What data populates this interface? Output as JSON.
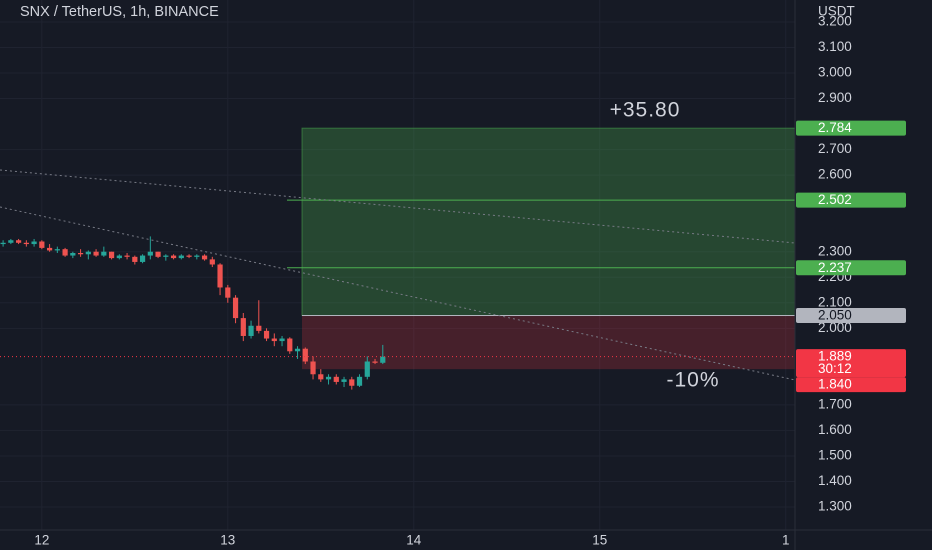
{
  "chart_data": {
    "type": "candlestick",
    "title": "SNX / TetherUS, 1h, BINANCE",
    "currency": "USDT",
    "up_color": "#26a69a",
    "down_color": "#ef5350",
    "x": [
      -5,
      -4,
      -3,
      -2,
      -1,
      0,
      1,
      2,
      3,
      4,
      5,
      6,
      7,
      8,
      9,
      10,
      11,
      12,
      13,
      14,
      15,
      16,
      17,
      18,
      19,
      20,
      21,
      22,
      23,
      24,
      25,
      26,
      27,
      28,
      29,
      30,
      31,
      32,
      33,
      34,
      35,
      36,
      37,
      38,
      39,
      40,
      41,
      42,
      43,
      44
    ],
    "open": [
      2.33,
      2.335,
      2.345,
      2.335,
      2.33,
      2.34,
      2.315,
      2.305,
      2.31,
      2.285,
      2.295,
      2.29,
      2.3,
      2.285,
      2.3,
      2.275,
      2.285,
      2.28,
      2.26,
      2.285,
      2.3,
      2.28,
      2.285,
      2.275,
      2.285,
      2.28,
      2.285,
      2.27,
      2.25,
      2.16,
      2.12,
      2.04,
      1.97,
      2.01,
      1.99,
      1.96,
      1.95,
      1.96,
      1.91,
      1.92,
      1.87,
      1.82,
      1.8,
      1.81,
      1.79,
      1.8,
      1.775,
      1.81,
      1.87,
      1.865
    ],
    "high": [
      2.345,
      2.35,
      2.35,
      2.345,
      2.35,
      2.345,
      2.33,
      2.32,
      2.315,
      2.3,
      2.31,
      2.305,
      2.31,
      2.32,
      2.3,
      2.29,
      2.295,
      2.285,
      2.29,
      2.36,
      2.3,
      2.29,
      2.29,
      2.29,
      2.29,
      2.29,
      2.29,
      2.28,
      2.255,
      2.17,
      2.13,
      2.06,
      2.03,
      2.11,
      2.0,
      1.98,
      1.97,
      1.965,
      1.93,
      1.925,
      1.89,
      1.84,
      1.82,
      1.82,
      1.81,
      1.81,
      1.82,
      1.89,
      1.88,
      1.935
    ],
    "low": [
      2.32,
      2.33,
      2.33,
      2.32,
      2.32,
      2.31,
      2.3,
      2.295,
      2.28,
      2.275,
      2.28,
      2.27,
      2.28,
      2.28,
      2.27,
      2.27,
      2.27,
      2.25,
      2.255,
      2.27,
      2.275,
      2.265,
      2.27,
      2.27,
      2.275,
      2.27,
      2.265,
      2.24,
      2.13,
      2.1,
      2.02,
      1.95,
      1.96,
      1.98,
      1.95,
      1.93,
      1.93,
      1.9,
      1.88,
      1.86,
      1.8,
      1.79,
      1.78,
      1.78,
      1.77,
      1.76,
      1.77,
      1.8,
      1.86,
      1.86
    ],
    "close": [
      2.335,
      2.345,
      2.335,
      2.33,
      2.34,
      2.315,
      2.305,
      2.31,
      2.285,
      2.295,
      2.29,
      2.3,
      2.285,
      2.3,
      2.275,
      2.285,
      2.28,
      2.26,
      2.285,
      2.3,
      2.28,
      2.285,
      2.275,
      2.285,
      2.28,
      2.285,
      2.27,
      2.25,
      2.16,
      2.12,
      2.04,
      1.97,
      2.01,
      1.99,
      1.96,
      1.95,
      1.96,
      1.91,
      1.92,
      1.87,
      1.82,
      1.8,
      1.81,
      1.79,
      1.8,
      1.775,
      1.81,
      1.87,
      1.865,
      1.889
    ],
    "xlim": [
      -5.4,
      97.2
    ],
    "xticks": [
      {
        "value": 0,
        "label": "12"
      },
      {
        "value": 24,
        "label": "13"
      },
      {
        "value": 48,
        "label": "14"
      },
      {
        "value": 72,
        "label": "15"
      },
      {
        "value": 96,
        "label": "1"
      }
    ],
    "ylim": [
      1.21,
      3.286
    ],
    "yticks": [
      {
        "value": 3.2,
        "label": "3.200"
      },
      {
        "value": 3.1,
        "label": "3.100"
      },
      {
        "value": 3.0,
        "label": "3.000"
      },
      {
        "value": 2.9,
        "label": "2.900"
      },
      {
        "value": 2.7,
        "label": "2.700"
      },
      {
        "value": 2.6,
        "label": "2.600"
      },
      {
        "value": 2.3,
        "label": "2.300"
      },
      {
        "value": 2.2,
        "label": "2.200"
      },
      {
        "value": 2.1,
        "label": "2.100"
      },
      {
        "value": 2.0,
        "label": "2.000"
      },
      {
        "value": 1.7,
        "label": "1.700"
      },
      {
        "value": 1.6,
        "label": "1.600"
      },
      {
        "value": 1.5,
        "label": "1.500"
      },
      {
        "value": 1.4,
        "label": "1.400"
      },
      {
        "value": 1.3,
        "label": "1.300"
      }
    ],
    "grid": true,
    "position": {
      "target": 2.784,
      "levels": [
        2.502,
        2.237
      ],
      "entry": {
        "value": 2.05,
        "label": "2.050"
      },
      "stop": {
        "value": 1.84,
        "label": "1.840"
      },
      "profit_label": "+35.80",
      "loss_label": "-10%",
      "profit_color": "#4caf50",
      "loss_color": "#f23645"
    },
    "last_price": {
      "value": 1.889,
      "countdown": "30:12"
    }
  }
}
